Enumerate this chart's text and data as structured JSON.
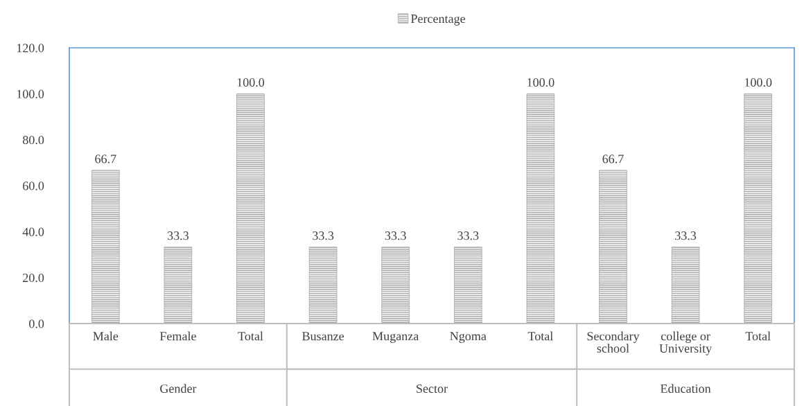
{
  "chart_data": {
    "type": "bar",
    "categories": [
      "Male",
      "Female",
      "Total",
      "Busanze",
      "Muganza",
      "Ngoma",
      "Total",
      "Secondary\nschool",
      "college or\nUniversity",
      "Total"
    ],
    "series": [
      {
        "name": "Percentage",
        "color": "#a6a6a6",
        "values": [
          66.7,
          33.3,
          100.0,
          33.3,
          33.3,
          33.3,
          100.0,
          66.7,
          33.3,
          100.0
        ]
      }
    ],
    "ylim": [
      0,
      120
    ],
    "yticks": [
      {
        "value": 0,
        "label": "0.0"
      },
      {
        "value": 20,
        "label": "20.0"
      },
      {
        "value": 40,
        "label": "40.0"
      },
      {
        "value": 60,
        "label": "60.0"
      },
      {
        "value": 80,
        "label": "80.0"
      },
      {
        "value": 100,
        "label": "100.0"
      },
      {
        "value": 120,
        "label": "120.0"
      }
    ],
    "value_labels": [
      "66.7",
      "33.3",
      "100.0",
      "33.3",
      "33.3",
      "33.3",
      "100.0",
      "66.7",
      "33.3",
      "100.0"
    ],
    "annotations": [
      "Gender",
      "Sector",
      "Education"
    ],
    "legend": "top",
    "grid": false
  }
}
